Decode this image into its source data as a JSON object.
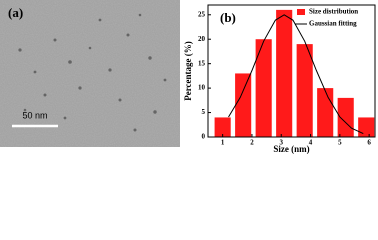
{
  "panel_a": {
    "label": "(a)",
    "scale_bar": "50 nm"
  },
  "chart_data": {
    "type": "bar",
    "label": "(b)",
    "x_label": "Size (nm)",
    "y_label": "Percentage (%)",
    "x": [
      1.0,
      1.7,
      2.4,
      3.1,
      3.8,
      4.5,
      5.2,
      5.9
    ],
    "series": [
      {
        "name": "Size distribution",
        "color": "#ff1a1a",
        "values": [
          4,
          13,
          20,
          26,
          19,
          10,
          8,
          4
        ]
      }
    ],
    "fit": {
      "name": "Gaussian fitting",
      "color": "#000000",
      "x": [
        1.2,
        1.6,
        2.0,
        2.4,
        2.8,
        3.1,
        3.4,
        3.8,
        4.2,
        4.6,
        5.0,
        5.4,
        5.8
      ],
      "y": [
        4.1,
        8.1,
        13.6,
        19.6,
        23.9,
        25,
        23.9,
        19.6,
        13.6,
        8.1,
        4.1,
        1.8,
        0.7
      ]
    },
    "xlim": [
      0.5,
      6.2
    ],
    "ylim": [
      0,
      27
    ],
    "xticks": [
      1,
      2,
      3,
      4,
      5,
      6
    ],
    "yticks": [
      0,
      5,
      10,
      15,
      20,
      25
    ],
    "legend": "upper right"
  }
}
